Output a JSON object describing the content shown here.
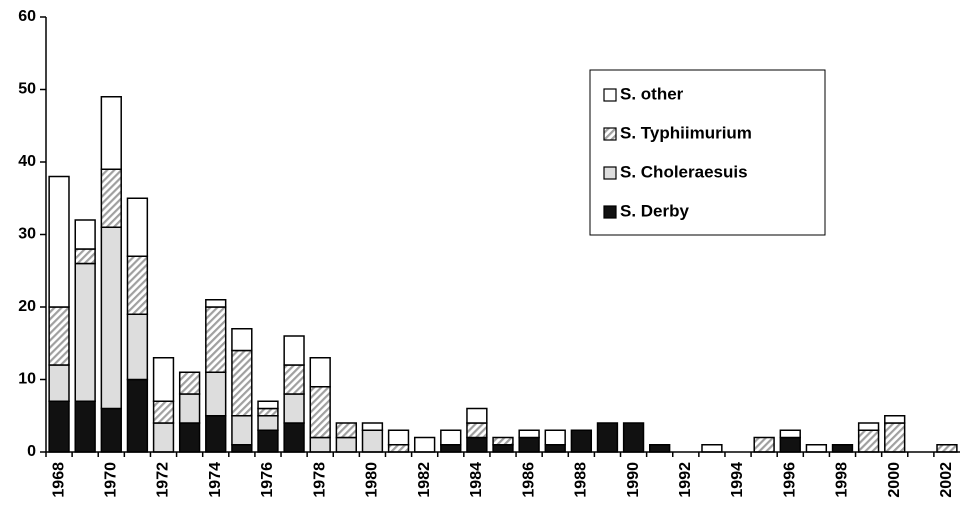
{
  "chart_data": {
    "type": "stacked_bar",
    "categories": [
      "1968",
      null,
      "1970",
      null,
      "1972",
      null,
      "1974",
      null,
      "1976",
      null,
      "1978",
      null,
      "1980",
      null,
      "1982",
      null,
      "1984",
      null,
      "1986",
      null,
      "1988",
      null,
      "1990",
      null,
      "1992",
      null,
      "1994",
      null,
      "1996",
      null,
      "1998",
      null,
      "2000",
      null,
      "2002"
    ],
    "series": [
      {
        "name": "S. Derby",
        "color": "#111111",
        "values": [
          7,
          7,
          6,
          10,
          0,
          4,
          5,
          1,
          3,
          4,
          0,
          0,
          0,
          0,
          0,
          1,
          2,
          1,
          2,
          1,
          3,
          4,
          4,
          1,
          0,
          0,
          0,
          0,
          2,
          0,
          1,
          0,
          0,
          0,
          0
        ]
      },
      {
        "name": "S. Choleraesuis",
        "color": "#dddddd",
        "values": [
          5,
          19,
          25,
          9,
          4,
          4,
          6,
          4,
          2,
          4,
          2,
          2,
          3,
          0,
          0,
          0,
          0,
          0,
          0,
          0,
          0,
          0,
          0,
          0,
          0,
          0,
          0,
          0,
          0,
          0,
          0,
          0,
          0,
          0,
          0
        ]
      },
      {
        "name": "S. Typhiimurium",
        "color": "#a0a0a0",
        "hatch": true,
        "values": [
          8,
          2,
          8,
          8,
          3,
          3,
          9,
          9,
          1,
          4,
          7,
          2,
          0,
          1,
          0,
          0,
          2,
          1,
          0,
          0,
          0,
          0,
          0,
          0,
          0,
          0,
          0,
          2,
          0,
          0,
          0,
          3,
          4,
          0,
          1
        ]
      },
      {
        "name": "S. other",
        "color": "#ffffff",
        "values": [
          18,
          4,
          10,
          8,
          6,
          0,
          1,
          3,
          1,
          4,
          4,
          0,
          1,
          2,
          2,
          2,
          2,
          0,
          1,
          2,
          0,
          0,
          0,
          0,
          0,
          1,
          0,
          0,
          1,
          1,
          0,
          1,
          1,
          0,
          0
        ]
      }
    ],
    "ylim": [
      0,
      60
    ],
    "yticks": [
      0,
      10,
      20,
      30,
      40,
      50,
      60
    ],
    "grid": false,
    "legend": "upper right"
  }
}
